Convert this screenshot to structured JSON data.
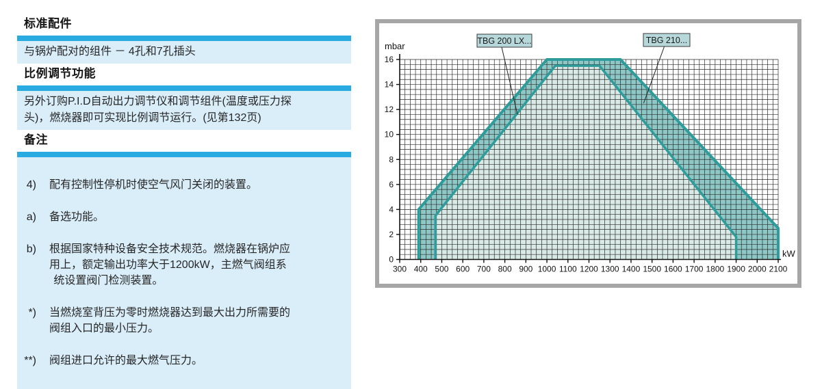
{
  "left_panel": {
    "accent_color": "#29abe2",
    "block_bg": "#daeefa",
    "sections": [
      {
        "heading": "标准配件",
        "body": "与锅炉配对的组件 － 4孔和7孔插头"
      },
      {
        "heading": "比例调节功能",
        "body": "另外订购P.I.D自动出力调节仪和调节组件(温度或压力探\n头)，燃烧器即可实现比例调节运行。(见第132页)"
      },
      {
        "heading": "备注",
        "notes": [
          {
            "marker": "4)",
            "text": "配有控制性停机时使空气风门关闭的装置。"
          },
          {
            "marker": "a)",
            "text": "备选功能。"
          },
          {
            "marker": "b)",
            "text": "根据国家特种设备安全技术规范。燃烧器在锅炉应\n用上，额定输出功率大于1200kW，主燃气阀组系\n  统设置阀门检测装置。"
          },
          {
            "marker": "*)",
            "text": "当燃烧室背压为零时燃烧器达到最大出力所需要的\n阀组入口的最小压力。"
          },
          {
            "marker": "**)",
            "text": "阀组进口允许的最大燃气压力。"
          }
        ]
      }
    ]
  },
  "chart_data": {
    "type": "area",
    "title": "",
    "xlabel": "kW",
    "ylabel": "mbar",
    "xlim": [
      300,
      2100
    ],
    "ylim": [
      0,
      16
    ],
    "x_tick_step": 100,
    "y_tick_step": 2,
    "x_minor_step": 25,
    "y_minor_step": 0.4,
    "grid": true,
    "grid_color": "#2a2a2a",
    "axis_color": "#111111",
    "line_color": "#2e9c9a",
    "legend_position": "none",
    "series": [
      {
        "id": "tbg-210",
        "name": "TBG 210...",
        "fill": "#8ec8c6",
        "line_width": 4,
        "points": [
          [
            390,
            0
          ],
          [
            390,
            4
          ],
          [
            1000,
            16
          ],
          [
            1350,
            16
          ],
          [
            2100,
            2.5
          ],
          [
            2100,
            0
          ]
        ]
      },
      {
        "id": "tbg-200-lx",
        "name": "TBG 200 LX...",
        "fill": "#d9e9e5",
        "line_width": 3.5,
        "points": [
          [
            470,
            0
          ],
          [
            470,
            3.5
          ],
          [
            1040,
            15.5
          ],
          [
            1250,
            15.5
          ],
          [
            1900,
            1.8
          ],
          [
            1900,
            0
          ]
        ]
      }
    ],
    "labels": [
      {
        "text": "TBG 200 LX...",
        "box_fill": "#b7d8da",
        "box": {
          "x": 143,
          "y": 16,
          "w": 80,
          "h": 19
        },
        "target": {
          "kw": 860,
          "mbar": 11.6
        }
      },
      {
        "text": "TBG 210...",
        "box_fill": "#b7d8da",
        "box": {
          "x": 386,
          "y": 15,
          "w": 68,
          "h": 19
        },
        "target": {
          "kw": 1460,
          "mbar": 12.5
        }
      }
    ]
  }
}
